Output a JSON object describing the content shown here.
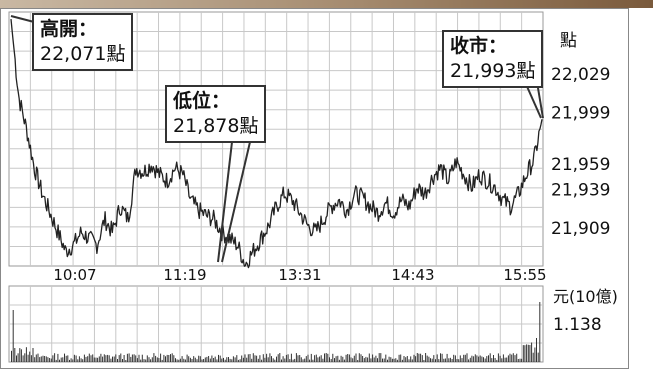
{
  "chart_data": {
    "type": "line",
    "price_axis": {
      "unit": "點",
      "ticks": [
        22029,
        21999,
        21959,
        21939,
        21909
      ]
    },
    "time_axis": {
      "ticks": [
        "10:07",
        "11:19",
        "13:31",
        "14:43",
        "15:55"
      ]
    },
    "volume_axis": {
      "unit": "元(10億)",
      "last_value": "1.138"
    },
    "annotations": {
      "open": {
        "title": "高開：",
        "value": "22,071點"
      },
      "low": {
        "title": "低位：",
        "value": "21,878點"
      },
      "close": {
        "title": "收市：",
        "value": "21,993點"
      }
    },
    "series": [
      {
        "values": [
          22071,
          22010,
          21985,
          21955,
          21935,
          21920,
          21905,
          21890,
          21895,
          21905,
          21900,
          21895,
          21915,
          21905,
          21925,
          21915,
          21955,
          21952,
          21958,
          21950,
          21945,
          21955,
          21950,
          21930,
          21922,
          21918,
          21915,
          21905,
          21900,
          21895,
          21880,
          21890,
          21900,
          21910,
          21925,
          21935,
          21930,
          21920,
          21910,
          21905,
          21915,
          21925,
          21930,
          21922,
          21935,
          21932,
          21925,
          21920,
          21928,
          21920,
          21930,
          21925,
          21940,
          21935,
          21948,
          21955,
          21945,
          21960,
          21950,
          21940,
          21950,
          21945,
          21940,
          21930,
          21925,
          21935,
          21950,
          21962,
          21993
        ]
      }
    ],
    "grid": true
  }
}
